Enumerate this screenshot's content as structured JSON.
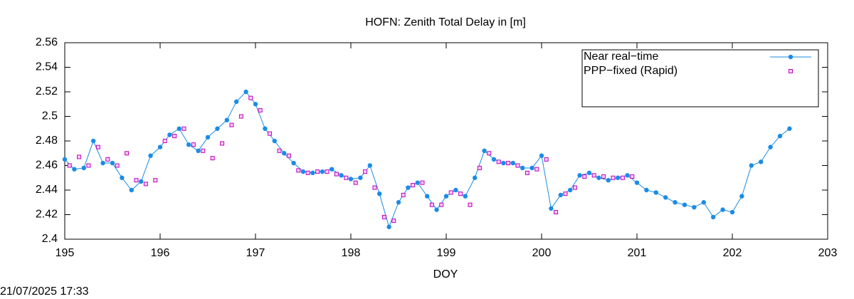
{
  "chart_data": {
    "type": "line",
    "title": "HOFN: Zenith Total Delay in [m]",
    "xlabel": "DOY",
    "footer": "21/07/2025 17:33",
    "xlim": [
      195,
      203
    ],
    "xticks": [
      195,
      196,
      197,
      198,
      199,
      200,
      201,
      202,
      203
    ],
    "ylim": [
      2.4,
      2.56
    ],
    "yticks": [
      2.4,
      2.42,
      2.44,
      2.46,
      2.48,
      2.5,
      2.52,
      2.54,
      2.56
    ],
    "legend": "upper right",
    "series": [
      {
        "name": "Near real−time",
        "color": "#1a8ce6",
        "marker": "circle",
        "x": [
          195.0,
          195.1,
          195.2,
          195.3,
          195.4,
          195.5,
          195.6,
          195.7,
          195.8,
          195.9,
          196.0,
          196.1,
          196.2,
          196.3,
          196.4,
          196.5,
          196.6,
          196.7,
          196.8,
          196.9,
          197.0,
          197.1,
          197.2,
          197.3,
          197.4,
          197.5,
          197.6,
          197.7,
          197.8,
          197.9,
          198.0,
          198.1,
          198.2,
          198.3,
          198.4,
          198.5,
          198.6,
          198.7,
          198.8,
          198.9,
          199.0,
          199.1,
          199.2,
          199.3,
          199.4,
          199.5,
          199.6,
          199.7,
          199.8,
          199.9,
          200.0,
          200.1,
          200.2,
          200.3,
          200.4,
          200.5,
          200.6,
          200.7,
          200.8,
          200.9,
          201.0,
          201.1,
          201.2,
          201.3,
          201.4,
          201.5,
          201.6,
          201.7,
          201.8,
          201.9,
          202.0,
          202.1,
          202.2,
          202.3,
          202.4,
          202.5,
          202.6
        ],
        "values": [
          2.465,
          2.457,
          2.458,
          2.48,
          2.462,
          2.462,
          2.45,
          2.44,
          2.447,
          2.468,
          2.475,
          2.485,
          2.49,
          2.477,
          2.472,
          2.483,
          2.49,
          2.497,
          2.512,
          2.52,
          2.51,
          2.49,
          2.48,
          2.47,
          2.462,
          2.455,
          2.454,
          2.455,
          2.457,
          2.452,
          2.449,
          2.45,
          2.46,
          2.437,
          2.41,
          2.43,
          2.442,
          2.446,
          2.435,
          2.424,
          2.435,
          2.44,
          2.435,
          2.45,
          2.472,
          2.465,
          2.462,
          2.462,
          2.458,
          2.458,
          2.468,
          2.425,
          2.436,
          2.44,
          2.452,
          2.454,
          2.45,
          2.448,
          2.45,
          2.452,
          2.446,
          2.44,
          2.438,
          2.434,
          2.43,
          2.428,
          2.426,
          2.43,
          2.418,
          2.424,
          2.422,
          2.435,
          2.46,
          2.463,
          2.475,
          2.484,
          2.49
        ]
      },
      {
        "name": "PPP−fixed (Rapid)",
        "color": "#c000c0",
        "marker": "square",
        "x": [
          195.05,
          195.15,
          195.25,
          195.35,
          195.45,
          195.55,
          195.65,
          195.75,
          195.85,
          195.95,
          196.05,
          196.15,
          196.25,
          196.35,
          196.45,
          196.55,
          196.65,
          196.75,
          196.85,
          196.95,
          197.05,
          197.15,
          197.25,
          197.35,
          197.45,
          197.55,
          197.65,
          197.75,
          197.85,
          197.95,
          198.05,
          198.15,
          198.25,
          198.35,
          198.45,
          198.55,
          198.65,
          198.75,
          198.85,
          198.95,
          199.05,
          199.15,
          199.25,
          199.35,
          199.45,
          199.55,
          199.65,
          199.75,
          199.85,
          199.95,
          200.05,
          200.15,
          200.25,
          200.35,
          200.45,
          200.55,
          200.65,
          200.75,
          200.85,
          200.95
        ],
        "values": [
          2.46,
          2.467,
          2.46,
          2.475,
          2.465,
          2.46,
          2.47,
          2.448,
          2.445,
          2.448,
          2.48,
          2.484,
          2.49,
          2.477,
          2.472,
          2.466,
          2.478,
          2.493,
          2.5,
          2.515,
          2.505,
          2.486,
          2.472,
          2.468,
          2.456,
          2.454,
          2.455,
          2.455,
          2.453,
          2.45,
          2.446,
          2.455,
          2.442,
          2.418,
          2.415,
          2.436,
          2.444,
          2.446,
          2.428,
          2.428,
          2.438,
          2.437,
          2.428,
          2.458,
          2.47,
          2.463,
          2.462,
          2.46,
          2.454,
          2.457,
          2.465,
          2.422,
          2.437,
          2.442,
          2.451,
          2.452,
          2.451,
          2.45,
          2.45,
          2.451
        ]
      }
    ]
  }
}
